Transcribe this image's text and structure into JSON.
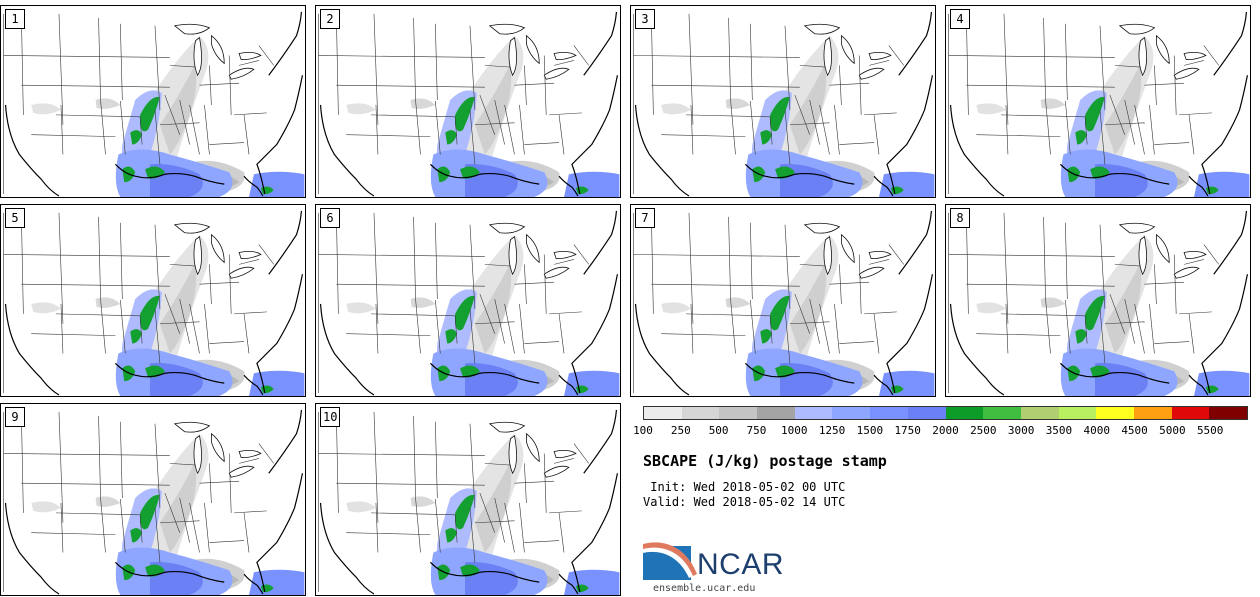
{
  "product": {
    "title": "SBCAPE (J/kg) postage stamp",
    "init": " Init: Wed 2018-05-02 00 UTC",
    "valid": "Valid: Wed 2018-05-02 14 UTC"
  },
  "members": [
    "1",
    "2",
    "3",
    "4",
    "5",
    "6",
    "7",
    "8",
    "9",
    "10"
  ],
  "colorbar": {
    "labels": [
      "100",
      "250",
      "500",
      "750",
      "1000",
      "1250",
      "1500",
      "1750",
      "2000",
      "2500",
      "3000",
      "3500",
      "4000",
      "4500",
      "5000",
      "5500"
    ],
    "colors": [
      "#ececec",
      "#d6d6d6",
      "#c4c4c4",
      "#a4a4a4",
      "#aebcff",
      "#8ea6ff",
      "#7a92ff",
      "#6a80f4",
      "#0c9c28",
      "#3fbe3f",
      "#b0d070",
      "#b8f060",
      "#ffff20",
      "#ffa010",
      "#e00808",
      "#800000"
    ]
  },
  "logo": {
    "text": "NCAR",
    "url": "ensemble.ucar.edu"
  }
}
